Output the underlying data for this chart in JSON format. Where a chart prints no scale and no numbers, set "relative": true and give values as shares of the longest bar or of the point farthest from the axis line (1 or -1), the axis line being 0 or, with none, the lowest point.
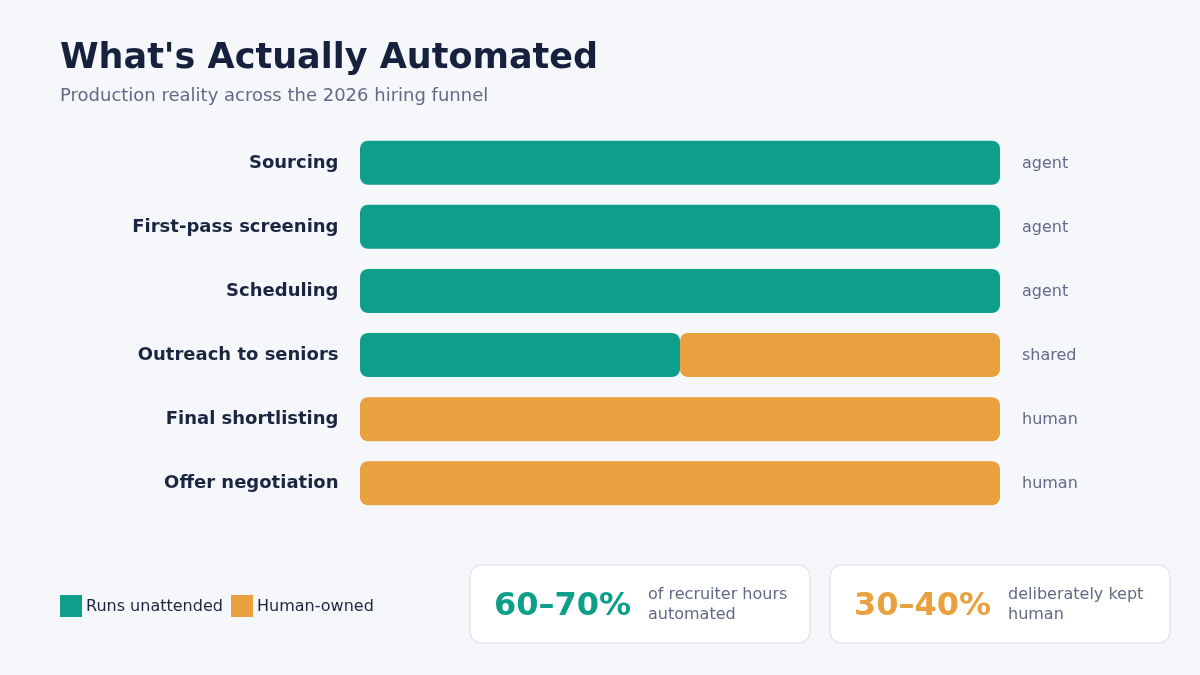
{
  "chart_data": {
    "type": "bar",
    "orientation": "horizontal",
    "stacked": true,
    "relative": true,
    "title": "What's Actually Automated",
    "subtitle": "Production reality across the 2026 hiring funnel",
    "categories": [
      "Sourcing",
      "First-pass screening",
      "Scheduling",
      "Outreach to seniors",
      "Final shortlisting",
      "Offer negotiation"
    ],
    "series": [
      {
        "name": "Runs unattended",
        "color": "#0e9f8a",
        "values": [
          1,
          1,
          1,
          0.5,
          null,
          null
        ]
      },
      {
        "name": "Human-owned",
        "color": "#e8a13e",
        "values": [
          null,
          null,
          null,
          0.5,
          1,
          1
        ]
      }
    ],
    "legend": "bottom left",
    "annotations": [
      "agent",
      "agent",
      "agent",
      "shared",
      "human",
      "human",
      "60–70%",
      "of recruiter hours automated",
      "30–40%",
      "deliberately kept human"
    ]
  }
}
